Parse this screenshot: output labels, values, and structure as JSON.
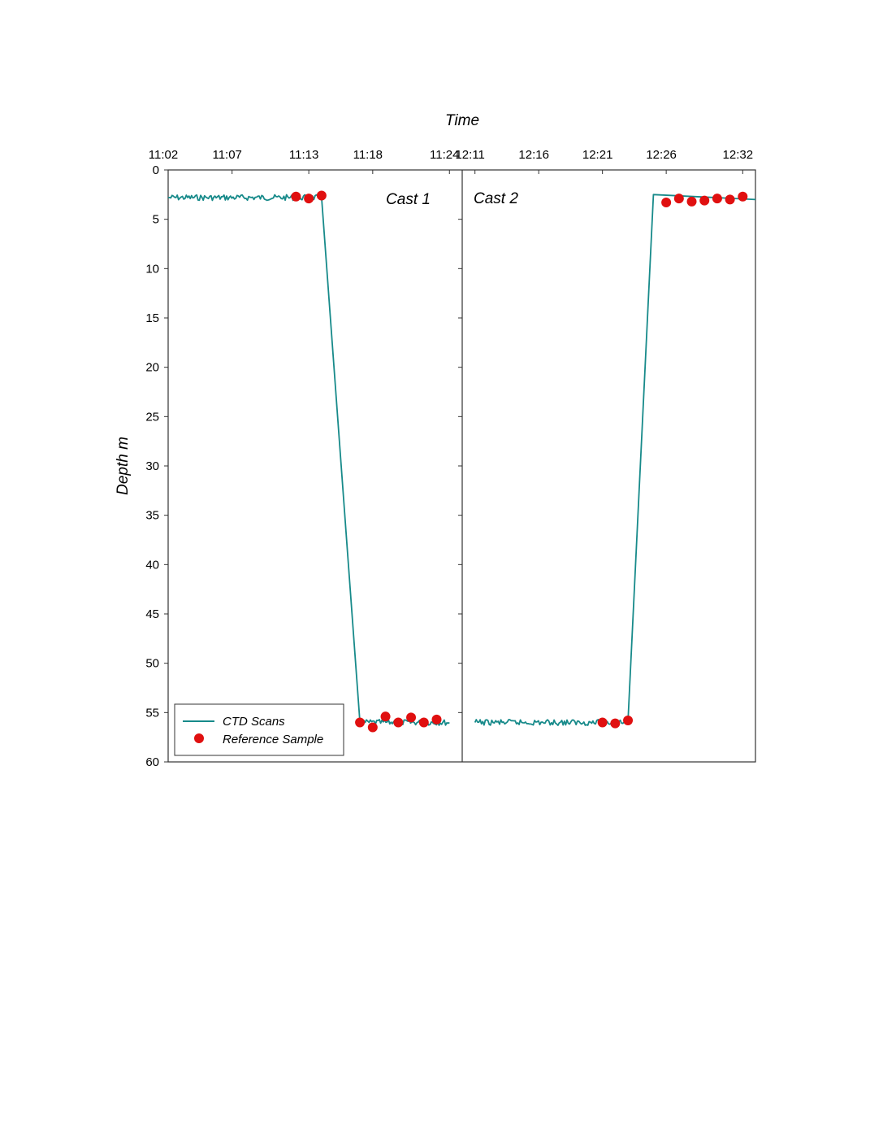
{
  "chart_data": {
    "type": "line",
    "xlabel": "Time",
    "ylabel": "Depth m",
    "ylim": [
      0,
      60
    ],
    "y_inverted": true,
    "y_ticks": [
      "0",
      "5",
      "10",
      "15",
      "20",
      "25",
      "30",
      "35",
      "40",
      "45",
      "50",
      "55",
      "60"
    ],
    "legend": {
      "placement": "bottom-left",
      "entries": [
        {
          "label": "CTD Scans",
          "color": "#178a8a",
          "marker": "line"
        },
        {
          "label": "Reference Sample",
          "color": "#e01010",
          "marker": "circle"
        }
      ]
    },
    "colors": {
      "ctd": "#178a8a",
      "reference": "#e01010"
    },
    "panels": [
      {
        "label": "Cast 1",
        "xlim": [
          "11:02",
          "11:25"
        ],
        "x_ticks": [
          "11:02",
          "11:07",
          "11:13",
          "11:18",
          "11:24"
        ],
        "ctd_path": [
          {
            "x": "11:02",
            "y": 2.8
          },
          {
            "x": "11:14",
            "y": 2.8
          },
          {
            "x": "11:17",
            "y": 56.0
          },
          {
            "x": "11:24",
            "y": 56.0
          }
        ],
        "reference_samples": [
          {
            "x": "11:12",
            "y": 2.7
          },
          {
            "x": "11:13",
            "y": 2.9
          },
          {
            "x": "11:14",
            "y": 2.6
          },
          {
            "x": "11:17",
            "y": 56.0
          },
          {
            "x": "11:18",
            "y": 56.5
          },
          {
            "x": "11:19",
            "y": 55.4
          },
          {
            "x": "11:20",
            "y": 56.0
          },
          {
            "x": "11:21",
            "y": 55.5
          },
          {
            "x": "11:22",
            "y": 56.0
          },
          {
            "x": "11:23",
            "y": 55.7
          }
        ]
      },
      {
        "label": "Cast 2",
        "xlim": [
          "12:10",
          "12:33"
        ],
        "x_ticks": [
          "12:11",
          "12:16",
          "12:21",
          "12:26",
          "12:32"
        ],
        "ctd_path": [
          {
            "x": "12:11",
            "y": 56.0
          },
          {
            "x": "12:23",
            "y": 56.0
          },
          {
            "x": "12:25",
            "y": 2.5
          },
          {
            "x": "12:33",
            "y": 3.0
          }
        ],
        "reference_samples": [
          {
            "x": "12:21",
            "y": 56.0
          },
          {
            "x": "12:22",
            "y": 56.1
          },
          {
            "x": "12:23",
            "y": 55.8
          },
          {
            "x": "12:26",
            "y": 3.3
          },
          {
            "x": "12:27",
            "y": 2.9
          },
          {
            "x": "12:28",
            "y": 3.2
          },
          {
            "x": "12:29",
            "y": 3.1
          },
          {
            "x": "12:30",
            "y": 2.9
          },
          {
            "x": "12:31",
            "y": 3.0
          },
          {
            "x": "12:32",
            "y": 2.7
          }
        ]
      }
    ]
  }
}
